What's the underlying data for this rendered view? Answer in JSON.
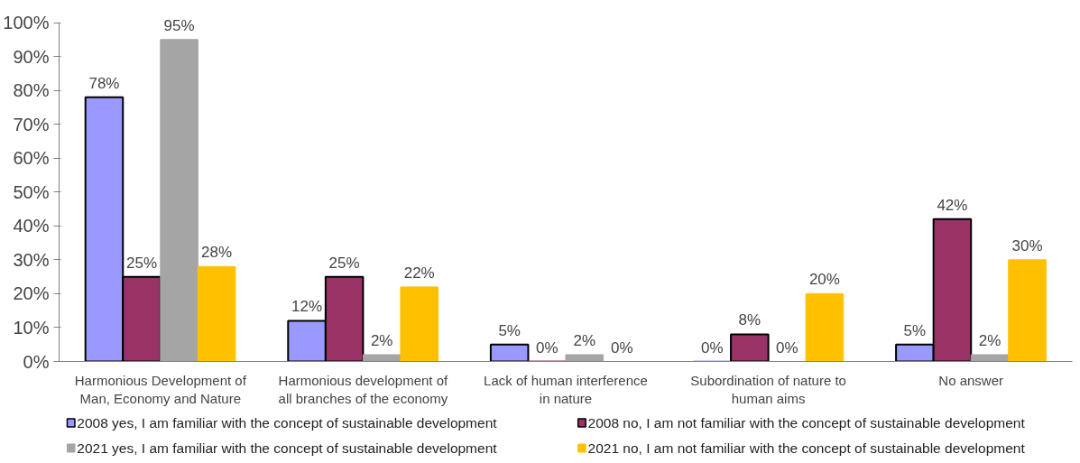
{
  "chart_data": {
    "type": "bar",
    "categories": [
      "Harmonious Development of\nMan, Economy and Nature",
      "Harmonious development of\nall branches of the economy",
      "Lack of human interference\nin nature",
      "Subordination of nature to\nhuman aims",
      "No answer"
    ],
    "series": [
      {
        "name": "2008 yes, I am familiar with the concept of sustainable development",
        "color": "#9999ff",
        "values": [
          78,
          12,
          5,
          0,
          5
        ],
        "value_labels": [
          "78%",
          "12%",
          "5%",
          "0%",
          "5%"
        ]
      },
      {
        "name": "2008 no, I am not familiar with the concept of sustainable development",
        "color": "#993366",
        "values": [
          25,
          25,
          0,
          8,
          42
        ],
        "value_labels": [
          "25%",
          "25%",
          "0%",
          "8%",
          "42%"
        ]
      },
      {
        "name": "2021 yes, I am familiar with the concept of sustainable development",
        "color": "#a5a5a5",
        "values": [
          95,
          2,
          2,
          0,
          2
        ],
        "value_labels": [
          "95%",
          "2%",
          "2%",
          "0%",
          "2%"
        ]
      },
      {
        "name": "2021 no, I am not familiar with the concept of sustainable development",
        "color": "#ffc000",
        "values": [
          28,
          22,
          0,
          20,
          30
        ],
        "value_labels": [
          "28%",
          "22%",
          "0%",
          "20%",
          "30%"
        ]
      }
    ],
    "ylim": [
      0,
      100
    ],
    "yticks": [
      {
        "value": 0,
        "label": "0%"
      },
      {
        "value": 10,
        "label": "10%"
      },
      {
        "value": 20,
        "label": "20%"
      },
      {
        "value": 30,
        "label": "30%"
      },
      {
        "value": 40,
        "label": "40%"
      },
      {
        "value": 50,
        "label": "50%"
      },
      {
        "value": 60,
        "label": "60%"
      },
      {
        "value": 70,
        "label": "70%"
      },
      {
        "value": 80,
        "label": "80%"
      },
      {
        "value": 90,
        "label": "90%"
      },
      {
        "value": 100,
        "label": "100%"
      }
    ],
    "grid": false,
    "legend": "bottom"
  }
}
